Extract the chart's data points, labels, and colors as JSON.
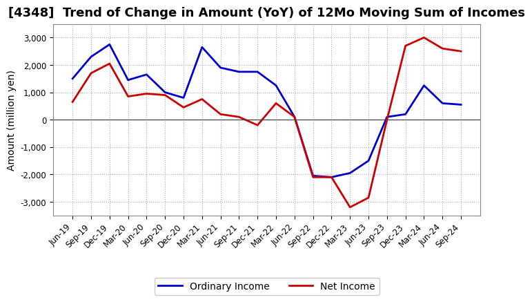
{
  "title": "[4348]  Trend of Change in Amount (YoY) of 12Mo Moving Sum of Incomes",
  "ylabel": "Amount (million yen)",
  "x_labels": [
    "Jun-19",
    "Sep-19",
    "Dec-19",
    "Mar-20",
    "Jun-20",
    "Sep-20",
    "Dec-20",
    "Mar-21",
    "Jun-21",
    "Sep-21",
    "Dec-21",
    "Mar-22",
    "Jun-22",
    "Sep-22",
    "Dec-22",
    "Mar-23",
    "Jun-23",
    "Sep-23",
    "Dec-23",
    "Mar-24",
    "Jun-24",
    "Sep-24"
  ],
  "ordinary_income": [
    1500,
    2300,
    2750,
    1450,
    1650,
    1000,
    800,
    2650,
    1900,
    1750,
    1750,
    1250,
    100,
    -2050,
    -2100,
    -1950,
    -1500,
    100,
    200,
    1250,
    600,
    550
  ],
  "net_income": [
    650,
    1700,
    2050,
    850,
    950,
    900,
    450,
    750,
    200,
    100,
    -200,
    600,
    100,
    -2100,
    -2100,
    -3200,
    -2850,
    0,
    2700,
    3000,
    2600,
    2500
  ],
  "ordinary_income_color": "#0000cc",
  "net_income_color": "#cc0000",
  "ylim": [
    -3500,
    3500
  ],
  "yticks": [
    -3000,
    -2000,
    -1000,
    0,
    1000,
    2000,
    3000
  ],
  "grid_color": "#aaaaaa",
  "background_color": "#ffffff",
  "line_width": 2.0,
  "legend_ordinary": "Ordinary Income",
  "legend_net": "Net Income",
  "title_fontsize": 13,
  "axis_fontsize": 10,
  "tick_fontsize": 8.5
}
